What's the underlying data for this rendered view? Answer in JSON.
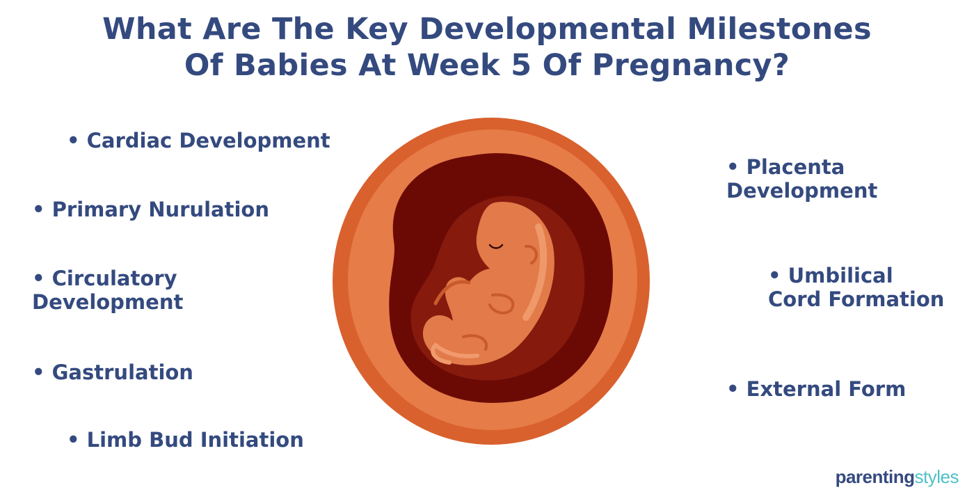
{
  "title": {
    "line1": "What Are The Key Developmental Milestones",
    "line2": "Of Babies At Week 5 Of Pregnancy?"
  },
  "left_items": [
    {
      "line1": "• Cardiac Development"
    },
    {
      "line1": "• Primary Nurulation"
    },
    {
      "line1": "• Circulatory",
      "line2": "Development"
    },
    {
      "line1": "• Gastrulation"
    },
    {
      "line1": "• Limb Bud Initiation"
    }
  ],
  "right_items": [
    {
      "line1": "•  Placenta",
      "line2": "Development"
    },
    {
      "line1": "• Umbilical",
      "line2": "Cord Formation"
    },
    {
      "line1": "• External Form"
    }
  ],
  "brand": {
    "part1": "parenting",
    "part2": "styles"
  },
  "colors": {
    "text": "#344a7f",
    "brand_accent": "#4fc1c6",
    "embryo_outer": "#d9612e",
    "embryo_mid": "#e67c48",
    "embryo_dark": "#6b0a05",
    "embryo_body": "#e27a4a"
  }
}
